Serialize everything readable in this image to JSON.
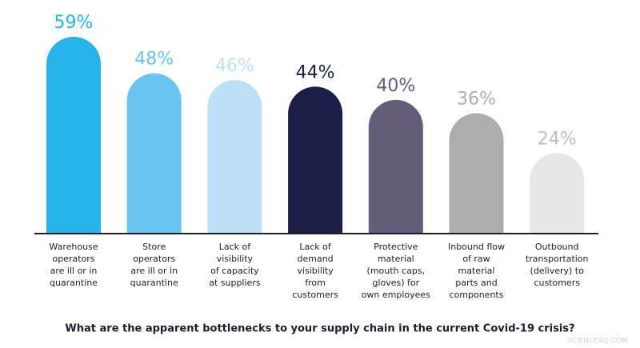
{
  "chart_data": {
    "type": "bar",
    "title": "What are the apparent bottlenecks to your supply chain in the current Covid-19 crisis?",
    "categories": [
      [
        "Warehouse",
        "operators",
        "are ill or in",
        "quarantine"
      ],
      [
        "Store",
        "operators",
        "are ill or in",
        "quarantine"
      ],
      [
        "Lack of",
        "visibility",
        "of capacity",
        "at suppliers"
      ],
      [
        "Lack of",
        "demand",
        "visibility",
        "from",
        "customers"
      ],
      [
        "Protective",
        "material",
        "(mouth caps,",
        "gloves) for",
        "own employees"
      ],
      [
        "Inbound flow",
        "of raw",
        "material",
        "parts and",
        "components"
      ],
      [
        "Outbound",
        "transportation",
        "(delivery) to",
        "customers"
      ]
    ],
    "values": [
      59,
      48,
      46,
      44,
      40,
      36,
      24
    ],
    "value_labels": [
      "59%",
      "48%",
      "46%",
      "44%",
      "40%",
      "36%",
      "24%"
    ],
    "colors": [
      "#27b4ea",
      "#6ac3ef",
      "#bee0f6",
      "#1c1e46",
      "#645c7b",
      "#adadad",
      "#e6e6e6"
    ],
    "watermark": "SCIENCEAQ.COM"
  }
}
